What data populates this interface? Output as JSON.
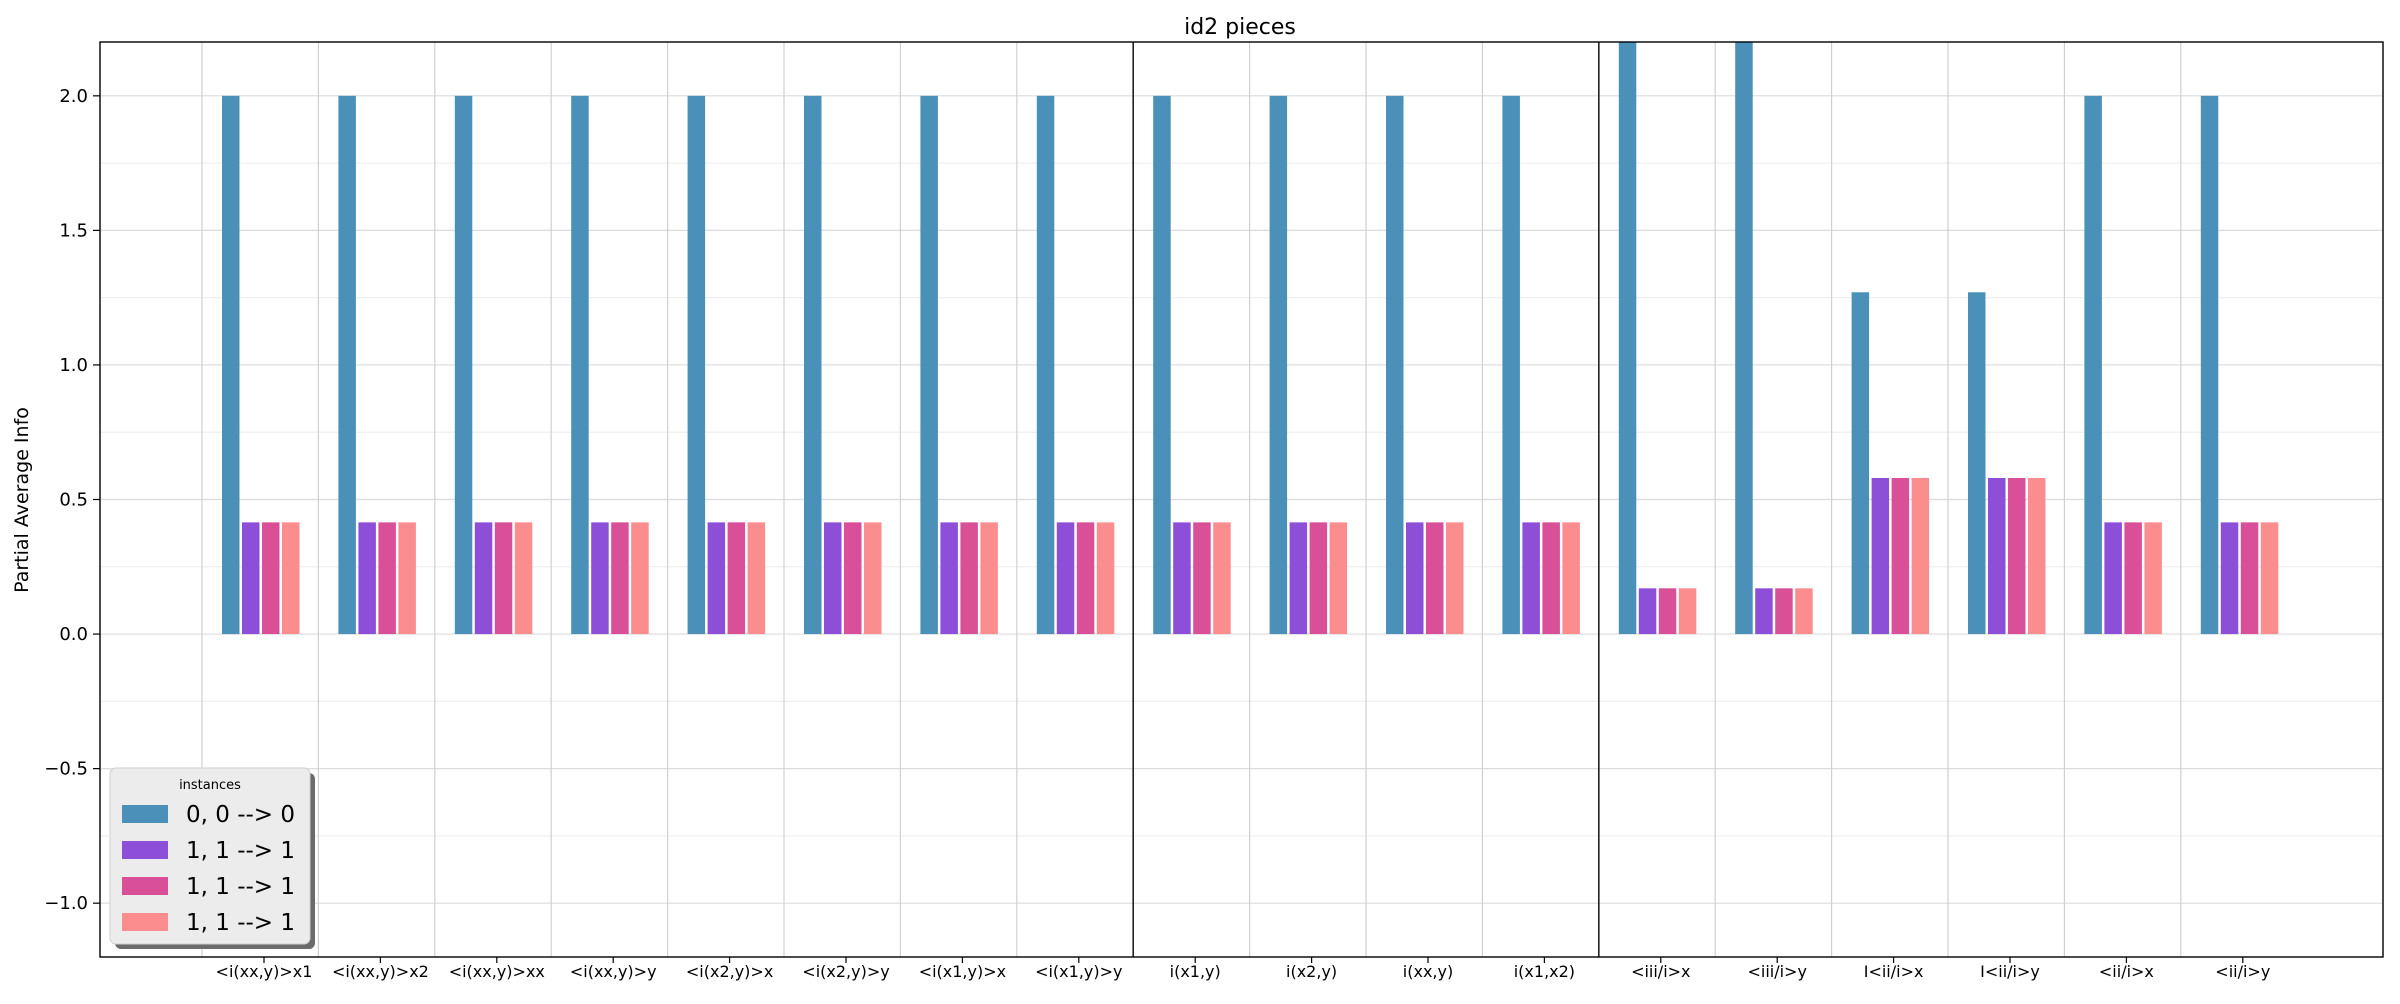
{
  "chart_data": {
    "type": "bar",
    "title": "id2 pieces",
    "xlabel": "",
    "ylabel": "Partial Average Info",
    "ylim": [
      -1.2,
      2.2
    ],
    "yticks": [
      -1.0,
      -0.5,
      0.0,
      0.5,
      1.0,
      1.5,
      2.0
    ],
    "ytick_labels": [
      "−1.0",
      "−0.5",
      "0.0",
      "0.5",
      "1.0",
      "1.5",
      "2.0"
    ],
    "grid": true,
    "categories": [
      "<i(xx,y)>x1",
      "<i(xx,y)>x2",
      "<i(xx,y)>xx",
      "<i(xx,y)>y",
      "<i(x2,y)>x",
      "<i(x2,y)>y",
      "<i(x1,y)>x",
      "<i(x1,y)>y",
      "i(x1,y)",
      "i(x2,y)",
      "i(xx,y)",
      "i(x1,x2)",
      "<iii/i>x",
      "<iii/i>y",
      "I<ii/i>x",
      "I<ii/i>y",
      "<ii/i>x",
      "<ii/i>y"
    ],
    "group_separators_after": [
      7,
      11
    ],
    "series": [
      {
        "name": "0, 0 --> 0",
        "color": "#4a90b8",
        "values": [
          2.0,
          2.0,
          2.0,
          2.0,
          2.0,
          2.0,
          2.0,
          2.0,
          2.0,
          2.0,
          2.0,
          2.0,
          2.25,
          2.25,
          1.27,
          1.27,
          2.0,
          2.0
        ]
      },
      {
        "name": "1, 1 --> 1",
        "color": "#8e4fd8",
        "values": [
          0.415,
          0.415,
          0.415,
          0.415,
          0.415,
          0.415,
          0.415,
          0.415,
          0.415,
          0.415,
          0.415,
          0.415,
          0.17,
          0.17,
          0.58,
          0.58,
          0.415,
          0.415
        ]
      },
      {
        "name": "1, 1 --> 1",
        "color": "#d94f98",
        "values": [
          0.415,
          0.415,
          0.415,
          0.415,
          0.415,
          0.415,
          0.415,
          0.415,
          0.415,
          0.415,
          0.415,
          0.415,
          0.17,
          0.17,
          0.58,
          0.58,
          0.415,
          0.415
        ]
      },
      {
        "name": "1, 1 --> 1",
        "color": "#fb8d8f",
        "values": [
          0.415,
          0.415,
          0.415,
          0.415,
          0.415,
          0.415,
          0.415,
          0.415,
          0.415,
          0.415,
          0.415,
          0.415,
          0.17,
          0.17,
          0.58,
          0.58,
          0.415,
          0.415
        ]
      }
    ],
    "legend": {
      "title": "instances",
      "position": "lower-left"
    }
  }
}
